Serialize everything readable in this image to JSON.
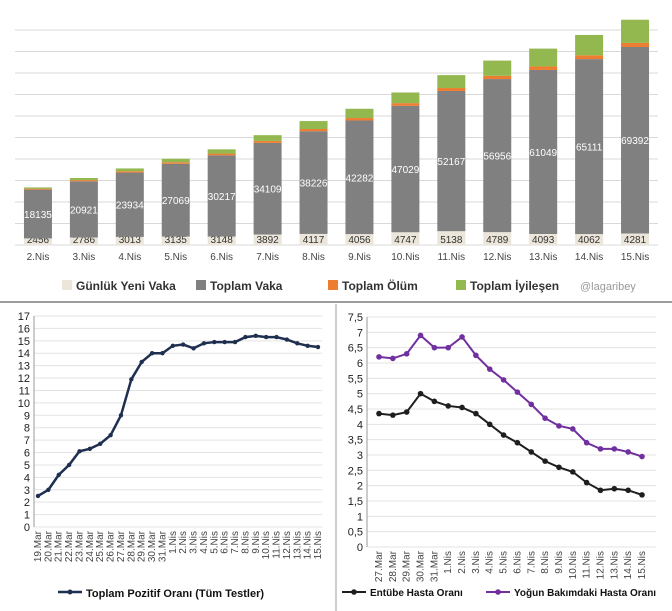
{
  "chart_data": [
    {
      "type": "bar",
      "stacked": true,
      "categories": [
        "2.Nis",
        "3.Nis",
        "4.Nis",
        "5.Nis",
        "6.Nis",
        "7.Nis",
        "8.Nis",
        "9.Nis",
        "10.Nis",
        "11.Nis",
        "12.Nis",
        "13.Nis",
        "14.Nis",
        "15.Nis"
      ],
      "series": [
        {
          "name": "Günlük Yeni Vaka",
          "color": "#ece6da",
          "values": [
            2456,
            2786,
            3013,
            3135,
            3148,
            3892,
            4117,
            4056,
            4747,
            5138,
            4789,
            4093,
            4062,
            4281
          ]
        },
        {
          "name": "Toplam Vaka",
          "color": "#808080",
          "values": [
            18135,
            20921,
            23934,
            27069,
            30217,
            34109,
            38226,
            42282,
            47029,
            52167,
            56956,
            61049,
            65111,
            69392
          ]
        },
        {
          "name": "Toplam Ölüm",
          "color": "#ed7d31",
          "values": [
            356,
            425,
            501,
            574,
            649,
            725,
            812,
            908,
            1006,
            1101,
            1198,
            1296,
            1403,
            1518
          ]
        },
        {
          "name": "Toplam İyileşen",
          "color": "#92b84f",
          "values": [
            484,
            786,
            1042,
            1326,
            1582,
            2142,
            2965,
            3446,
            3957,
            4799,
            5674,
            6646,
            7582,
            8631
          ]
        }
      ],
      "ylim": [
        0,
        80000
      ],
      "legend": [
        "Günlük Yeni Vaka",
        "Toplam Vaka",
        "Toplam Ölüm",
        "Toplam İyileşen"
      ],
      "watermark": "@lagaribey"
    },
    {
      "type": "line",
      "x": [
        "19.Mar",
        "20.Mar",
        "21.Mar",
        "22.Mar",
        "23.Mar",
        "24.Mar",
        "25.Mar",
        "26.Mar",
        "27.Mar",
        "28.Mar",
        "29.Mar",
        "30.Mar",
        "31.Mar",
        "1.Nis",
        "2.Nis",
        "3.Nis",
        "4.Nis",
        "5.Nis",
        "6.Nis",
        "7.Nis",
        "8.Nis",
        "9.Nis",
        "10.Nis",
        "11.Nis",
        "12.Nis",
        "13.Nis",
        "14.Nis",
        "15.Nis"
      ],
      "series": [
        {
          "name": "Toplam Pozitif Oranı (Tüm Testler)",
          "color": "#1f2f4f",
          "values": [
            2.5,
            3.0,
            4.2,
            5.0,
            6.1,
            6.3,
            6.7,
            7.4,
            9.0,
            11.9,
            13.3,
            14.0,
            14.0,
            14.6,
            14.7,
            14.4,
            14.8,
            14.9,
            14.9,
            14.9,
            15.3,
            15.4,
            15.3,
            15.3,
            15.1,
            14.8,
            14.6,
            14.5
          ]
        }
      ],
      "yticks": [
        "0",
        "1",
        "2",
        "3",
        "4",
        "5",
        "6",
        "7",
        "8",
        "9",
        "10",
        "11",
        "12",
        "13",
        "14",
        "15",
        "16",
        "17"
      ],
      "ylim": [
        0,
        17
      ]
    },
    {
      "type": "line",
      "x": [
        "27.Mar",
        "28.Mar",
        "29.Mar",
        "30.Mar",
        "31.Mar",
        "1.Nis",
        "2.Nis",
        "3.Nis",
        "4.Nis",
        "5.Nis",
        "6.Nis",
        "7.Nis",
        "8.Nis",
        "9.Nis",
        "10.Nis",
        "11.Nis",
        "12.Nis",
        "13.Nis",
        "14.Nis",
        "15.Nis"
      ],
      "series": [
        {
          "name": "Entübe Hasta Oranı",
          "color": "#1e1e1e",
          "values": [
            4.35,
            4.3,
            4.4,
            5.0,
            4.75,
            4.6,
            4.55,
            4.35,
            4.0,
            3.65,
            3.4,
            3.1,
            2.8,
            2.6,
            2.45,
            2.1,
            1.85,
            1.9,
            1.85,
            1.7
          ]
        },
        {
          "name": "Yoğun Bakımdaki Hasta Oranı",
          "color": "#7030a0",
          "values": [
            6.2,
            6.15,
            6.3,
            6.9,
            6.5,
            6.5,
            6.85,
            6.25,
            5.8,
            5.45,
            5.05,
            4.65,
            4.2,
            3.95,
            3.85,
            3.4,
            3.2,
            3.2,
            3.1,
            2.95
          ]
        }
      ],
      "yticks": [
        "0",
        "0,5",
        "1",
        "1,5",
        "2",
        "2,5",
        "3",
        "3,5",
        "4",
        "4,5",
        "5",
        "5,5",
        "6",
        "6,5",
        "7",
        "7,5"
      ],
      "ylim": [
        0,
        7.5
      ]
    }
  ]
}
